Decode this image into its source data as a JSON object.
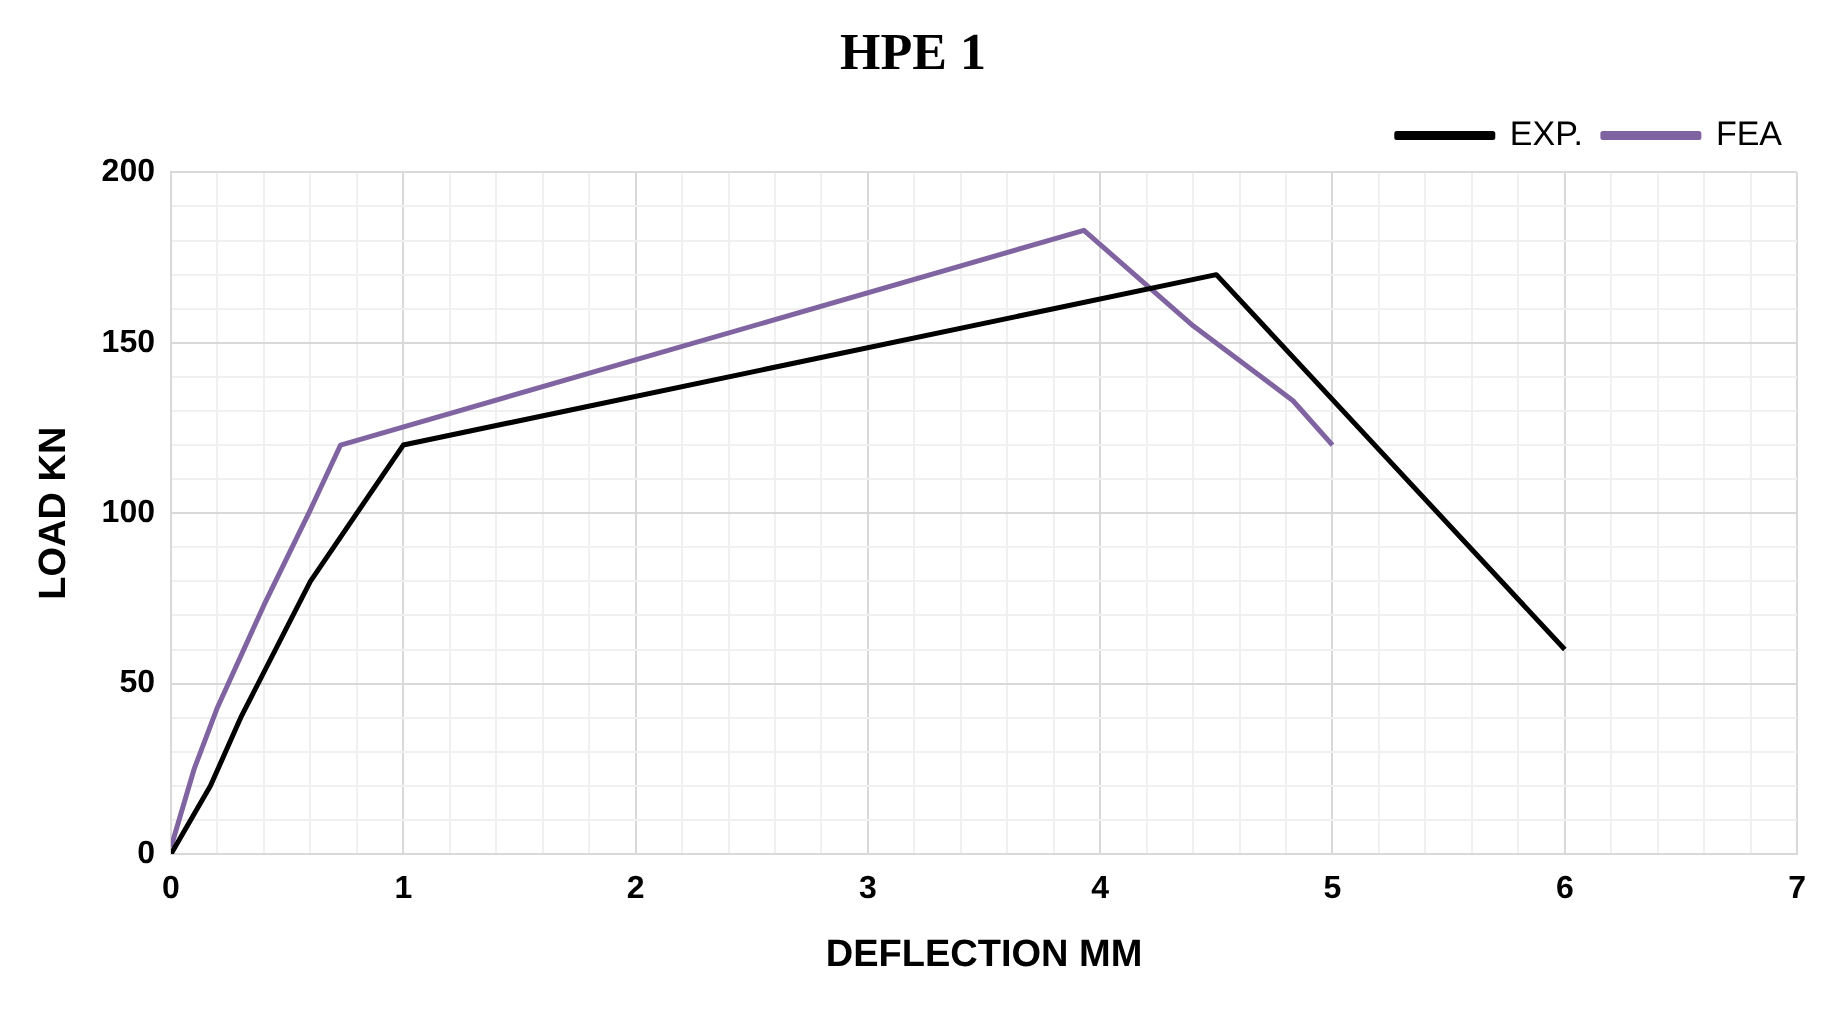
{
  "chart_data": {
    "type": "line",
    "title": "HPE 1",
    "xlabel": "DEFLECTION MM",
    "ylabel": "LOAD KN",
    "series": [
      {
        "name": "EXP.",
        "color": "#000000",
        "x": [
          0,
          0.17,
          0.3,
          0.6,
          1,
          4.5,
          6
        ],
        "values": [
          0,
          20,
          40,
          80,
          120,
          170,
          60
        ]
      },
      {
        "name": "FEA",
        "color": "#8064a2",
        "x": [
          0,
          0.1,
          0.2,
          0.4,
          0.6,
          0.73,
          3.93,
          4.4,
          4.83,
          5
        ],
        "values": [
          2,
          25,
          43,
          73,
          101,
          120,
          183,
          155,
          133,
          120
        ]
      }
    ],
    "xlim": [
      0,
      7
    ],
    "xticks": [
      0,
      {
        "value": 0.2,
        "label": null
      },
      {
        "value": 0.4,
        "label": null
      },
      {
        "value": 0.6,
        "label": null
      },
      {
        "value": 0.8,
        "label": null
      },
      1,
      {
        "value": 1.2,
        "label": null
      },
      {
        "value": 1.4,
        "label": null
      },
      {
        "value": 1.6,
        "label": null
      },
      {
        "value": 1.8,
        "label": null
      },
      2,
      {
        "value": 2.2,
        "label": null
      },
      {
        "value": 2.4,
        "label": null
      },
      {
        "value": 2.6,
        "label": null
      },
      {
        "value": 2.8,
        "label": null
      },
      3,
      {
        "value": 3.2,
        "label": null
      },
      {
        "value": 3.4,
        "label": null
      },
      {
        "value": 3.6,
        "label": null
      },
      {
        "value": 3.8,
        "label": null
      },
      4,
      {
        "value": 4.2,
        "label": null
      },
      {
        "value": 4.4,
        "label": null
      },
      {
        "value": 4.6,
        "label": null
      },
      {
        "value": 4.8,
        "label": null
      },
      5,
      {
        "value": 5.2,
        "label": null
      },
      {
        "value": 5.4,
        "label": null
      },
      {
        "value": 5.6,
        "label": null
      },
      {
        "value": 5.8,
        "label": null
      },
      6,
      {
        "value": 6.2,
        "label": null
      },
      {
        "value": 6.4,
        "label": null
      },
      {
        "value": 6.6,
        "label": null
      },
      {
        "value": 6.8,
        "label": null
      },
      7
    ],
    "ylim": [
      0,
      200
    ],
    "yticks": [
      0,
      {
        "value": 10,
        "label": null
      },
      {
        "value": 20,
        "label": null
      },
      {
        "value": 30,
        "label": null
      },
      {
        "value": 40,
        "label": null
      },
      50,
      {
        "value": 60,
        "label": null
      },
      {
        "value": 70,
        "label": null
      },
      {
        "value": 80,
        "label": null
      },
      {
        "value": 90,
        "label": null
      },
      100,
      {
        "value": 110,
        "label": null
      },
      {
        "value": 120,
        "label": null
      },
      {
        "value": 130,
        "label": null
      },
      {
        "value": 140,
        "label": null
      },
      150,
      {
        "value": 160,
        "label": null
      },
      {
        "value": 170,
        "label": null
      },
      {
        "value": 180,
        "label": null
      },
      {
        "value": 190,
        "label": null
      },
      200
    ],
    "grid": true,
    "legend": "top right",
    "marker": "none",
    "line_style": "solid"
  }
}
